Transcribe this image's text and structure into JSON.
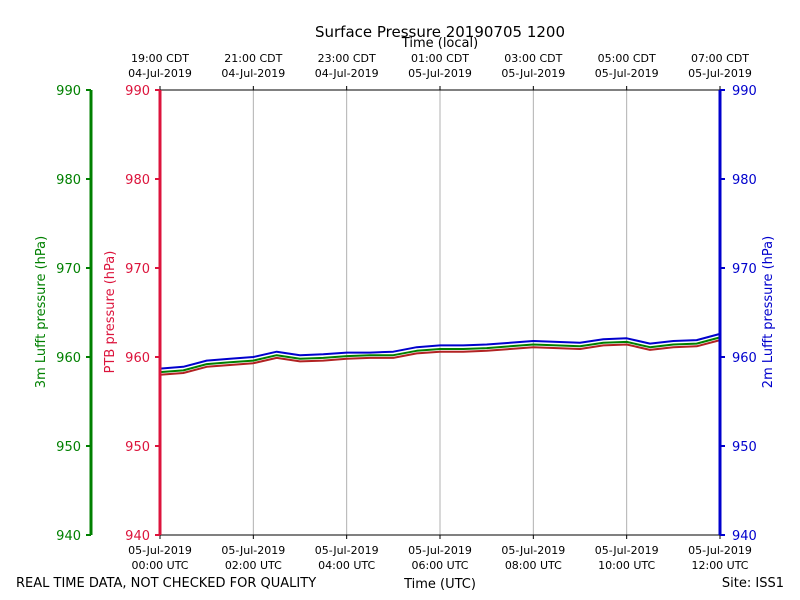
{
  "chart_data": {
    "type": "line",
    "title": "Surface Pressure 20190705 1200",
    "top_axis_label": "Time (local)",
    "xlabel": "Time (UTC)",
    "footer_left": "REAL TIME DATA, NOT CHECKED FOR QUALITY",
    "footer_right": "Site: ISS1",
    "x_range_hours": [
      0,
      12
    ],
    "ylim": [
      940,
      990
    ],
    "yticks": [
      940,
      950,
      960,
      970,
      980,
      990
    ],
    "grid": true,
    "y_axes": [
      {
        "label": "3m Lufft pressure (hPa)",
        "color": "#008000",
        "side": "far-left"
      },
      {
        "label": "PTB pressure (hPa)",
        "color": "#dc143c",
        "side": "left"
      },
      {
        "label": "2m Lufft pressure (hPa)",
        "color": "#0000cd",
        "side": "right"
      }
    ],
    "bottom_ticks": [
      {
        "hour": 0,
        "line1": "05-Jul-2019",
        "line2": "00:00 UTC"
      },
      {
        "hour": 2,
        "line1": "05-Jul-2019",
        "line2": "02:00 UTC"
      },
      {
        "hour": 4,
        "line1": "05-Jul-2019",
        "line2": "04:00 UTC"
      },
      {
        "hour": 6,
        "line1": "05-Jul-2019",
        "line2": "06:00 UTC"
      },
      {
        "hour": 8,
        "line1": "05-Jul-2019",
        "line2": "08:00 UTC"
      },
      {
        "hour": 10,
        "line1": "05-Jul-2019",
        "line2": "10:00 UTC"
      },
      {
        "hour": 12,
        "line1": "05-Jul-2019",
        "line2": "12:00 UTC"
      }
    ],
    "top_ticks": [
      {
        "hour": 0,
        "line1": "19:00 CDT",
        "line2": "04-Jul-2019"
      },
      {
        "hour": 2,
        "line1": "21:00 CDT",
        "line2": "04-Jul-2019"
      },
      {
        "hour": 4,
        "line1": "23:00 CDT",
        "line2": "04-Jul-2019"
      },
      {
        "hour": 6,
        "line1": "01:00 CDT",
        "line2": "05-Jul-2019"
      },
      {
        "hour": 8,
        "line1": "03:00 CDT",
        "line2": "05-Jul-2019"
      },
      {
        "hour": 10,
        "line1": "05:00 CDT",
        "line2": "05-Jul-2019"
      },
      {
        "hour": 12,
        "line1": "07:00 CDT",
        "line2": "05-Jul-2019"
      }
    ],
    "x": [
      0,
      0.5,
      1,
      1.5,
      2,
      2.5,
      3,
      3.5,
      4,
      4.5,
      5,
      5.5,
      6,
      6.5,
      7,
      7.5,
      8,
      8.5,
      9,
      9.5,
      10,
      10.5,
      11,
      11.5,
      12
    ],
    "series": [
      {
        "name": "PTB pressure",
        "color": "#b22222",
        "values": [
          958.0,
          958.2,
          958.9,
          959.1,
          959.3,
          959.9,
          959.5,
          959.6,
          959.8,
          959.9,
          959.9,
          960.4,
          960.6,
          960.6,
          960.7,
          960.9,
          961.1,
          961.0,
          960.9,
          961.3,
          961.4,
          960.8,
          961.1,
          961.2,
          961.9
        ]
      },
      {
        "name": "3m Lufft pressure",
        "color": "#008000",
        "values": [
          958.3,
          958.5,
          959.2,
          959.4,
          959.6,
          960.2,
          959.8,
          959.9,
          960.1,
          960.2,
          960.2,
          960.7,
          960.9,
          960.9,
          961.0,
          961.2,
          961.4,
          961.3,
          961.2,
          961.6,
          961.7,
          961.1,
          961.4,
          961.5,
          962.2
        ]
      },
      {
        "name": "2m Lufft pressure",
        "color": "#0000cd",
        "values": [
          958.7,
          958.9,
          959.6,
          959.8,
          960.0,
          960.6,
          960.2,
          960.3,
          960.5,
          960.5,
          960.6,
          961.1,
          961.3,
          961.3,
          961.4,
          961.6,
          961.8,
          961.7,
          961.6,
          962.0,
          962.1,
          961.5,
          961.8,
          961.9,
          962.6
        ]
      }
    ]
  }
}
